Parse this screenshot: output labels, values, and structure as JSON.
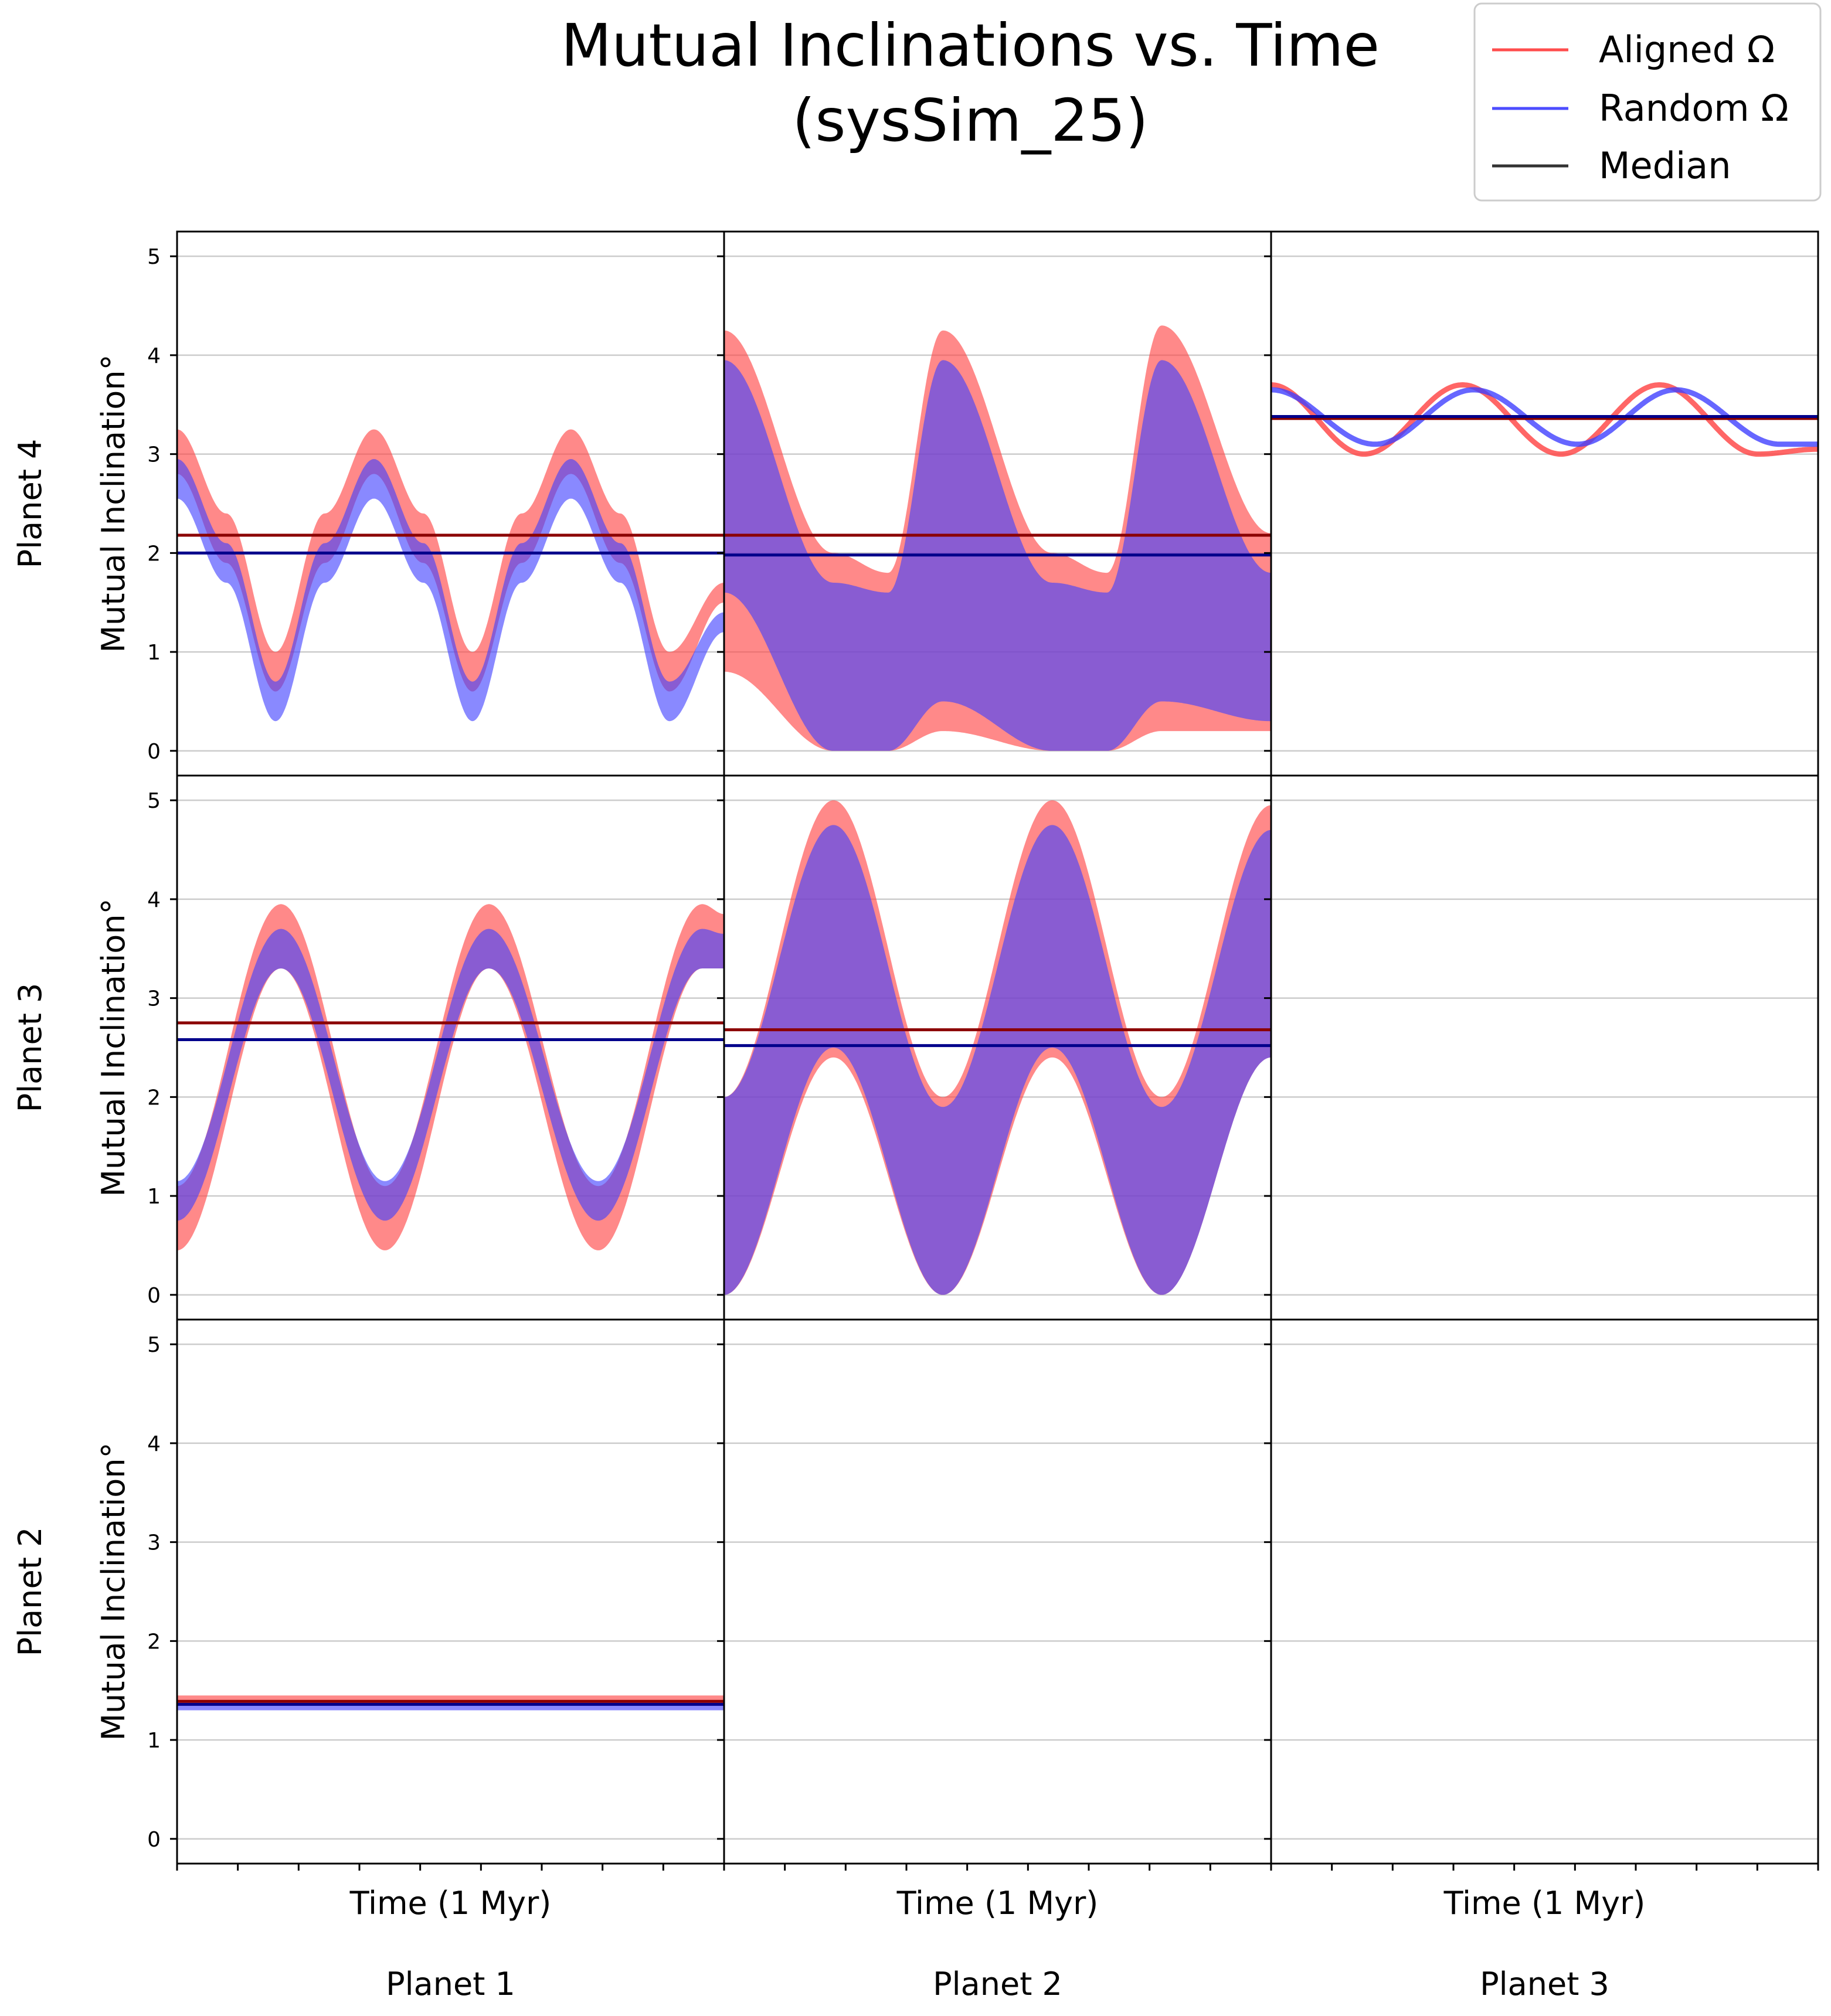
{
  "title_line1": "Mutual Inclinations vs. Time",
  "title_line2": "(sysSim_25)",
  "legend": [
    {
      "label": "Aligned Ω",
      "color": "#ff4d4d"
    },
    {
      "label": "Random Ω",
      "color": "#4d4dff"
    },
    {
      "label": "Median",
      "color": "#333333"
    }
  ],
  "colors": {
    "aligned": "#ff4040",
    "random": "#4040ff",
    "aligned_median": "#8b0000",
    "random_median": "#00008b",
    "grid": "#cccccc"
  },
  "ylabel": "Mutual Inclination°",
  "xlabel": "Time (1 Myr)",
  "row_labels": [
    "Planet 4",
    "Planet 3",
    "Planet 2"
  ],
  "col_labels": [
    "Planet 1",
    "Planet 2",
    "Planet 3"
  ],
  "chart_data": {
    "type": "scatter",
    "ylim": [
      -0.25,
      5.25
    ],
    "yticks": [
      0,
      1,
      2,
      3,
      4,
      5
    ],
    "xlim": [
      0,
      1
    ],
    "grid": "horizontal",
    "legend_position": "top-right",
    "panels": [
      {
        "row": "Planet 4",
        "col": "Planet 1",
        "series": [
          {
            "name": "Aligned Ω",
            "x": [
              0,
              0.09,
              0.18,
              0.27,
              0.36,
              0.45,
              0.54,
              0.63,
              0.72,
              0.81,
              0.9,
              1.0
            ],
            "lower": [
              2.8,
              1.9,
              0.6,
              1.9,
              2.8,
              1.9,
              0.6,
              1.9,
              2.8,
              1.9,
              0.6,
              1.5
            ],
            "upper": [
              3.25,
              2.4,
              1.0,
              2.4,
              3.25,
              2.4,
              1.0,
              2.4,
              3.25,
              2.4,
              1.0,
              1.7
            ]
          },
          {
            "name": "Random Ω",
            "x": [
              0,
              0.09,
              0.18,
              0.27,
              0.36,
              0.45,
              0.54,
              0.63,
              0.72,
              0.81,
              0.9,
              1.0
            ],
            "lower": [
              2.55,
              1.7,
              0.3,
              1.7,
              2.55,
              1.7,
              0.3,
              1.7,
              2.55,
              1.7,
              0.3,
              1.2
            ],
            "upper": [
              2.95,
              2.1,
              0.7,
              2.1,
              2.95,
              2.1,
              0.7,
              2.1,
              2.95,
              2.1,
              0.7,
              1.4
            ]
          }
        ],
        "median": {
          "Aligned Ω": 2.18,
          "Random Ω": 2.0
        }
      },
      {
        "row": "Planet 4",
        "col": "Planet 2",
        "series": [
          {
            "name": "Aligned Ω",
            "x": [
              0,
              0.2,
              0.3,
              0.4,
              0.6,
              0.7,
              0.8,
              1.0
            ],
            "lower": [
              0.8,
              0.0,
              0.0,
              0.2,
              0.0,
              0.0,
              0.2,
              0.2
            ],
            "upper": [
              4.25,
              2.0,
              1.8,
              4.25,
              2.0,
              1.8,
              4.3,
              2.2
            ]
          },
          {
            "name": "Random Ω",
            "x": [
              0,
              0.2,
              0.3,
              0.4,
              0.6,
              0.7,
              0.8,
              1.0
            ],
            "lower": [
              1.6,
              0.0,
              0.0,
              0.5,
              0.0,
              0.0,
              0.5,
              0.3
            ],
            "upper": [
              3.95,
              1.7,
              1.6,
              3.95,
              1.7,
              1.6,
              3.95,
              1.8
            ]
          }
        ],
        "median": {
          "Aligned Ω": 2.18,
          "Random Ω": 1.98
        }
      },
      {
        "row": "Planet 4",
        "col": "Planet 3",
        "series": [
          {
            "name": "Aligned Ω",
            "x": [
              0,
              0.17,
              0.35,
              0.53,
              0.71,
              0.89,
              1.0
            ],
            "values": [
              3.7,
              3.0,
              3.7,
              3.0,
              3.7,
              3.0,
              3.05
            ]
          },
          {
            "name": "Random Ω",
            "x": [
              0,
              0.19,
              0.37,
              0.56,
              0.74,
              0.93,
              1.0
            ],
            "values": [
              3.65,
              3.1,
              3.65,
              3.1,
              3.65,
              3.1,
              3.1
            ]
          }
        ],
        "median": {
          "Aligned Ω": 3.36,
          "Random Ω": 3.38
        }
      },
      {
        "row": "Planet 3",
        "col": "Planet 1",
        "series": [
          {
            "name": "Aligned Ω",
            "x": [
              0,
              0.19,
              0.38,
              0.57,
              0.77,
              0.96,
              1.0
            ],
            "lower": [
              0.45,
              3.3,
              0.45,
              3.3,
              0.45,
              3.3,
              3.3
            ],
            "upper": [
              1.1,
              3.95,
              1.1,
              3.95,
              1.1,
              3.95,
              3.85
            ]
          },
          {
            "name": "Random Ω",
            "x": [
              0,
              0.19,
              0.38,
              0.57,
              0.77,
              0.96,
              1.0
            ],
            "lower": [
              0.75,
              3.3,
              0.75,
              3.3,
              0.75,
              3.3,
              3.3
            ],
            "upper": [
              1.15,
              3.7,
              1.15,
              3.7,
              1.15,
              3.7,
              3.65
            ]
          }
        ],
        "median": {
          "Aligned Ω": 2.75,
          "Random Ω": 2.58
        }
      },
      {
        "row": "Planet 3",
        "col": "Planet 2",
        "series": [
          {
            "name": "Aligned Ω",
            "x": [
              0,
              0.2,
              0.4,
              0.6,
              0.8,
              1.0
            ],
            "lower": [
              0.0,
              2.4,
              0.0,
              2.4,
              0.0,
              2.4
            ],
            "upper": [
              2.0,
              5.0,
              2.0,
              5.0,
              2.0,
              4.95
            ]
          },
          {
            "name": "Random Ω",
            "x": [
              0,
              0.2,
              0.4,
              0.6,
              0.8,
              1.0
            ],
            "lower": [
              0.0,
              2.5,
              0.0,
              2.5,
              0.0,
              2.4
            ],
            "upper": [
              2.0,
              4.75,
              1.9,
              4.75,
              1.9,
              4.7
            ]
          }
        ],
        "median": {
          "Aligned Ω": 2.68,
          "Random Ω": 2.52
        }
      },
      {
        "row": "Planet 2",
        "col": "Planet 1",
        "series": [
          {
            "name": "Aligned Ω",
            "x": [
              0,
              1.0
            ],
            "lower": [
              1.36,
              1.36
            ],
            "upper": [
              1.45,
              1.45
            ]
          },
          {
            "name": "Random Ω",
            "x": [
              0,
              1.0
            ],
            "lower": [
              1.3,
              1.3
            ],
            "upper": [
              1.37,
              1.37
            ]
          }
        ],
        "median": {
          "Aligned Ω": 1.39,
          "Random Ω": 1.36
        }
      }
    ]
  }
}
